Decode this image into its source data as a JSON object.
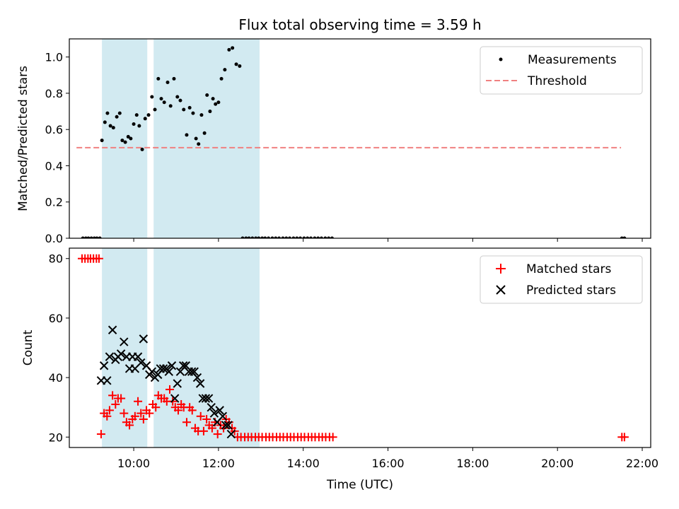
{
  "chart_data": [
    {
      "type": "scatter",
      "title": "Flux total observing time = 3.59 h",
      "xlabel": "",
      "ylabel": "Matched/Predicted stars",
      "ylim": [
        0,
        1.1
      ],
      "xlim_hours": [
        8.48,
        22.2
      ],
      "yticks": [
        0.0,
        0.2,
        0.4,
        0.6,
        0.8,
        1.0
      ],
      "ytick_labels": [
        "0.0",
        "0.2",
        "0.4",
        "0.6",
        "0.8",
        "1.0"
      ],
      "legend_position": "top-right",
      "shaded_intervals_hours": [
        [
          9.25,
          10.32
        ],
        [
          10.47,
          12.97
        ]
      ],
      "shade_color": "#add8e6",
      "threshold": {
        "name": "Threshold",
        "value": 0.5,
        "x_range_hours": [
          8.65,
          21.5
        ],
        "color": "#f08080"
      },
      "series": [
        {
          "name": "Measurements",
          "color": "#000000",
          "marker": "dot",
          "points": [
            [
              8.8,
              0
            ],
            [
              8.87,
              0
            ],
            [
              8.93,
              0
            ],
            [
              9.0,
              0
            ],
            [
              9.07,
              0
            ],
            [
              9.13,
              0
            ],
            [
              9.2,
              0
            ],
            [
              9.25,
              0.54
            ],
            [
              9.32,
              0.64
            ],
            [
              9.38,
              0.69
            ],
            [
              9.45,
              0.62
            ],
            [
              9.52,
              0.61
            ],
            [
              9.6,
              0.67
            ],
            [
              9.67,
              0.69
            ],
            [
              9.73,
              0.54
            ],
            [
              9.8,
              0.53
            ],
            [
              9.87,
              0.56
            ],
            [
              9.93,
              0.55
            ],
            [
              10.0,
              0.63
            ],
            [
              10.07,
              0.68
            ],
            [
              10.13,
              0.62
            ],
            [
              10.2,
              0.49
            ],
            [
              10.27,
              0.66
            ],
            [
              10.35,
              0.68
            ],
            [
              10.43,
              0.78
            ],
            [
              10.5,
              0.71
            ],
            [
              10.58,
              0.88
            ],
            [
              10.65,
              0.77
            ],
            [
              10.72,
              0.75
            ],
            [
              10.8,
              0.86
            ],
            [
              10.87,
              0.73
            ],
            [
              10.95,
              0.88
            ],
            [
              11.03,
              0.78
            ],
            [
              11.1,
              0.76
            ],
            [
              11.18,
              0.71
            ],
            [
              11.25,
              0.57
            ],
            [
              11.32,
              0.72
            ],
            [
              11.4,
              0.69
            ],
            [
              11.47,
              0.55
            ],
            [
              11.53,
              0.52
            ],
            [
              11.6,
              0.68
            ],
            [
              11.67,
              0.58
            ],
            [
              11.73,
              0.79
            ],
            [
              11.8,
              0.7
            ],
            [
              11.87,
              0.77
            ],
            [
              11.93,
              0.74
            ],
            [
              12.0,
              0.75
            ],
            [
              12.07,
              0.88
            ],
            [
              12.15,
              0.93
            ],
            [
              12.25,
              1.04
            ],
            [
              12.33,
              1.05
            ],
            [
              12.42,
              0.96
            ],
            [
              12.5,
              0.95
            ],
            [
              12.57,
              0
            ],
            [
              12.65,
              0
            ],
            [
              12.72,
              0
            ],
            [
              12.8,
              0
            ],
            [
              12.88,
              0
            ],
            [
              12.95,
              0
            ],
            [
              13.03,
              0
            ],
            [
              13.1,
              0
            ],
            [
              13.18,
              0
            ],
            [
              13.27,
              0
            ],
            [
              13.35,
              0
            ],
            [
              13.43,
              0
            ],
            [
              13.52,
              0
            ],
            [
              13.6,
              0
            ],
            [
              13.68,
              0
            ],
            [
              13.77,
              0
            ],
            [
              13.85,
              0
            ],
            [
              13.93,
              0
            ],
            [
              14.02,
              0
            ],
            [
              14.1,
              0
            ],
            [
              14.18,
              0
            ],
            [
              14.27,
              0
            ],
            [
              14.35,
              0
            ],
            [
              14.43,
              0
            ],
            [
              14.52,
              0
            ],
            [
              14.6,
              0
            ],
            [
              14.68,
              0
            ],
            [
              21.52,
              0
            ],
            [
              21.58,
              0
            ]
          ]
        }
      ]
    },
    {
      "type": "scatter",
      "title": "",
      "xlabel": "Time (UTC)",
      "ylabel": "Count",
      "ylim": [
        16.5,
        83.5
      ],
      "xlim_hours": [
        8.48,
        22.2
      ],
      "yticks": [
        20,
        40,
        60,
        80
      ],
      "ytick_labels": [
        "20",
        "40",
        "60",
        "80"
      ],
      "xticks_hours": [
        10,
        12,
        14,
        16,
        18,
        20,
        22
      ],
      "xtick_labels": [
        "10:00",
        "12:00",
        "14:00",
        "16:00",
        "18:00",
        "20:00",
        "22:00"
      ],
      "legend_position": "top-right",
      "shaded_intervals_hours": [
        [
          9.25,
          10.32
        ],
        [
          10.47,
          12.97
        ]
      ],
      "shade_color": "#add8e6",
      "series": [
        {
          "name": "Matched stars",
          "color": "#ff0000",
          "marker": "plus",
          "points": [
            [
              8.78,
              80
            ],
            [
              8.85,
              80
            ],
            [
              8.92,
              80
            ],
            [
              8.98,
              80
            ],
            [
              9.05,
              80
            ],
            [
              9.12,
              80
            ],
            [
              9.18,
              80
            ],
            [
              9.23,
              21
            ],
            [
              9.3,
              28
            ],
            [
              9.37,
              27
            ],
            [
              9.43,
              29
            ],
            [
              9.5,
              34
            ],
            [
              9.57,
              31
            ],
            [
              9.63,
              33
            ],
            [
              9.7,
              33
            ],
            [
              9.77,
              28
            ],
            [
              9.83,
              25
            ],
            [
              9.9,
              24
            ],
            [
              9.97,
              26
            ],
            [
              10.03,
              27
            ],
            [
              10.1,
              32
            ],
            [
              10.17,
              28
            ],
            [
              10.23,
              26
            ],
            [
              10.3,
              29
            ],
            [
              10.37,
              28
            ],
            [
              10.45,
              31
            ],
            [
              10.52,
              30
            ],
            [
              10.58,
              34
            ],
            [
              10.65,
              33
            ],
            [
              10.72,
              33
            ],
            [
              10.78,
              32
            ],
            [
              10.85,
              36
            ],
            [
              10.92,
              32
            ],
            [
              10.98,
              30
            ],
            [
              11.05,
              29
            ],
            [
              11.12,
              31
            ],
            [
              11.18,
              30
            ],
            [
              11.25,
              25
            ],
            [
              11.32,
              30
            ],
            [
              11.38,
              29
            ],
            [
              11.45,
              23
            ],
            [
              11.52,
              22
            ],
            [
              11.58,
              27
            ],
            [
              11.65,
              22
            ],
            [
              11.72,
              26
            ],
            [
              11.78,
              24
            ],
            [
              11.85,
              23
            ],
            [
              11.92,
              25
            ],
            [
              11.98,
              21
            ],
            [
              12.05,
              24
            ],
            [
              12.12,
              23
            ],
            [
              12.18,
              26
            ],
            [
              12.25,
              25
            ],
            [
              12.32,
              23
            ],
            [
              12.38,
              22
            ],
            [
              12.45,
              20
            ],
            [
              12.53,
              20
            ],
            [
              12.62,
              20
            ],
            [
              12.7,
              20
            ],
            [
              12.78,
              20
            ],
            [
              12.87,
              20
            ],
            [
              12.95,
              20
            ],
            [
              13.03,
              20
            ],
            [
              13.12,
              20
            ],
            [
              13.2,
              20
            ],
            [
              13.28,
              20
            ],
            [
              13.37,
              20
            ],
            [
              13.45,
              20
            ],
            [
              13.53,
              20
            ],
            [
              13.62,
              20
            ],
            [
              13.7,
              20
            ],
            [
              13.78,
              20
            ],
            [
              13.87,
              20
            ],
            [
              13.95,
              20
            ],
            [
              14.03,
              20
            ],
            [
              14.12,
              20
            ],
            [
              14.2,
              20
            ],
            [
              14.28,
              20
            ],
            [
              14.37,
              20
            ],
            [
              14.45,
              20
            ],
            [
              14.53,
              20
            ],
            [
              14.62,
              20
            ],
            [
              14.7,
              20
            ],
            [
              21.52,
              20
            ],
            [
              21.58,
              20
            ]
          ]
        },
        {
          "name": "Predicted stars",
          "color": "#000000",
          "marker": "x",
          "points": [
            [
              9.23,
              39
            ],
            [
              9.3,
              44
            ],
            [
              9.37,
              39
            ],
            [
              9.43,
              47
            ],
            [
              9.5,
              56
            ],
            [
              9.57,
              46
            ],
            [
              9.63,
              47
            ],
            [
              9.7,
              48
            ],
            [
              9.77,
              52
            ],
            [
              9.83,
              47
            ],
            [
              9.9,
              43
            ],
            [
              9.97,
              47
            ],
            [
              10.03,
              43
            ],
            [
              10.1,
              47
            ],
            [
              10.17,
              45
            ],
            [
              10.23,
              53
            ],
            [
              10.3,
              44
            ],
            [
              10.37,
              41
            ],
            [
              10.43,
              42
            ],
            [
              10.5,
              40
            ],
            [
              10.57,
              41
            ],
            [
              10.63,
              43
            ],
            [
              10.7,
              43
            ],
            [
              10.77,
              43
            ],
            [
              10.83,
              42
            ],
            [
              10.9,
              44
            ],
            [
              10.97,
              33
            ],
            [
              11.03,
              38
            ],
            [
              11.1,
              42
            ],
            [
              11.17,
              44
            ],
            [
              11.23,
              44
            ],
            [
              11.3,
              42
            ],
            [
              11.37,
              42
            ],
            [
              11.43,
              42
            ],
            [
              11.5,
              40
            ],
            [
              11.57,
              38
            ],
            [
              11.63,
              33
            ],
            [
              11.7,
              33
            ],
            [
              11.77,
              33
            ],
            [
              11.83,
              30
            ],
            [
              11.9,
              28
            ],
            [
              11.97,
              25
            ],
            [
              12.03,
              29
            ],
            [
              12.1,
              27
            ],
            [
              12.17,
              24
            ],
            [
              12.23,
              24
            ],
            [
              12.3,
              21
            ]
          ]
        }
      ]
    }
  ]
}
